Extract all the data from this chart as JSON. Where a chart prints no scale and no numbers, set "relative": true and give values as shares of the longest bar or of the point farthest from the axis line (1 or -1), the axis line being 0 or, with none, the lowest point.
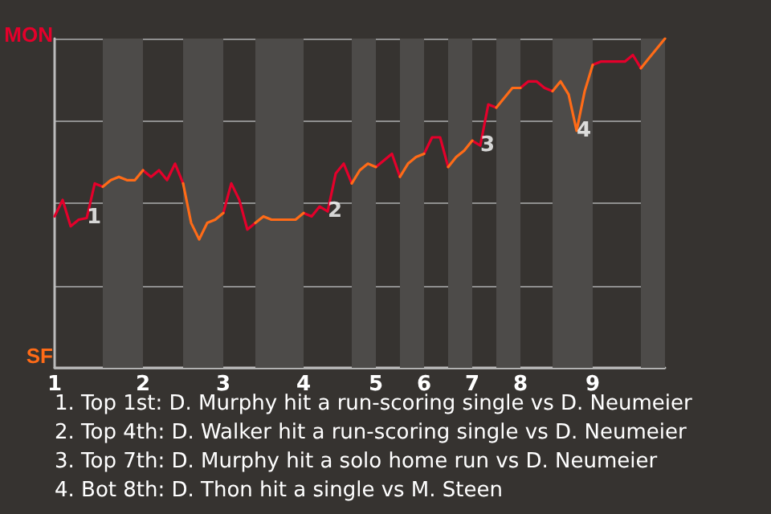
{
  "chart_data": {
    "type": "line",
    "relative": true,
    "categories": [
      "1",
      null,
      null,
      null,
      null,
      null,
      null,
      null,
      null,
      null,
      null,
      "2",
      null,
      null,
      null,
      null,
      null,
      null,
      null,
      null,
      null,
      "3",
      null,
      null,
      null,
      null,
      null,
      null,
      null,
      null,
      null,
      "4",
      null,
      null,
      null,
      null,
      null,
      null,
      null,
      null,
      "5",
      null,
      null,
      null,
      null,
      null,
      "6",
      null,
      null,
      null,
      null,
      null,
      "7",
      null,
      null,
      null,
      null,
      null,
      "8",
      null,
      null,
      null,
      null,
      null,
      null,
      null,
      null,
      "9",
      null,
      null,
      null,
      null,
      null,
      null,
      null,
      null,
      null
    ],
    "grid": "y",
    "marker": "none",
    "line_style": "solid",
    "series": [
      {
        "color": "#e4002b",
        "values": [
          0.46,
          0.51,
          0.43,
          0.45,
          0.455,
          0.56,
          0.55,
          null,
          null,
          null,
          null,
          0.6,
          0.58,
          0.6,
          0.57,
          0.62,
          0.56,
          null,
          null,
          null,
          null,
          0.47,
          0.56,
          0.51,
          0.42,
          0.44,
          null,
          null,
          null,
          null,
          null,
          0.47,
          0.46,
          0.49,
          0.475,
          0.59,
          0.62,
          0.56,
          null,
          null,
          0.61,
          0.63,
          0.65,
          0.58,
          null,
          null,
          0.65,
          0.7,
          0.7,
          0.61,
          null,
          null,
          0.69,
          0.675,
          0.8,
          0.79,
          null,
          null,
          0.85,
          0.87,
          0.87,
          0.85,
          0.84,
          null,
          null,
          null,
          null,
          0.92,
          0.93,
          0.93,
          0.93,
          0.93,
          0.95,
          0.91,
          null,
          null,
          null
        ]
      },
      {
        "color": "#ff6b17",
        "values": [
          null,
          null,
          null,
          null,
          null,
          null,
          0.55,
          0.57,
          0.58,
          0.57,
          0.57,
          0.6,
          null,
          null,
          null,
          null,
          0.56,
          0.44,
          0.39,
          0.44,
          0.45,
          0.47,
          null,
          null,
          null,
          0.44,
          0.46,
          0.45,
          0.45,
          0.45,
          0.45,
          0.47,
          null,
          null,
          null,
          null,
          null,
          0.56,
          0.6,
          0.62,
          0.61,
          null,
          null,
          0.58,
          0.62,
          0.64,
          0.65,
          null,
          null,
          0.61,
          0.64,
          0.66,
          0.69,
          null,
          null,
          0.79,
          0.82,
          0.85,
          0.85,
          null,
          null,
          null,
          0.84,
          0.87,
          0.83,
          0.72,
          0.84,
          0.92,
          null,
          null,
          null,
          null,
          null,
          0.91,
          0.94,
          0.97,
          1
        ]
      }
    ],
    "annotations": [
      {
        "text": "1",
        "y": 0.455
      },
      {
        "text": "2",
        "y": 0.475
      },
      {
        "text": "3",
        "y": 0.675
      },
      {
        "text": "4",
        "y": 0.72
      },
      "MON",
      "SF",
      "1. Top 1st: D. Murphy hit a run-scoring single vs D. Neumeier",
      "2. Top 4th: D. Walker hit a run-scoring single vs D. Neumeier",
      "3. Top 7th: D. Murphy hit a solo home run vs D. Neumeier",
      "4. Bot 8th: D. Thon hit a single vs M. Steen"
    ]
  }
}
